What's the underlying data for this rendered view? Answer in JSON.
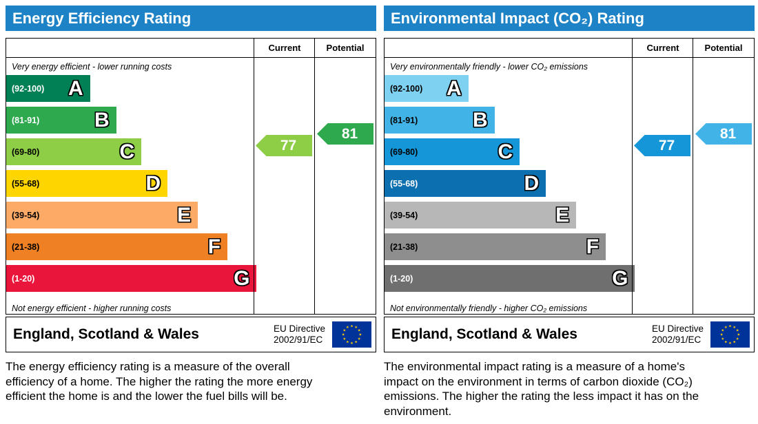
{
  "panels": [
    {
      "title": "Energy Efficiency Rating",
      "columns": {
        "current": "Current",
        "potential": "Potential"
      },
      "top_caption": "Very energy efficient - lower running costs",
      "bottom_caption": "Not energy efficient - higher running costs",
      "bands": [
        {
          "letter": "A",
          "range": "(92-100)",
          "min": 92,
          "max": 100,
          "color": "#008054",
          "label_color": "#ffffff",
          "width": "22.7%"
        },
        {
          "letter": "B",
          "range": "(81-91)",
          "min": 81,
          "max": 91,
          "color": "#2ea94e",
          "label_color": "#ffffff",
          "width": "29.8%"
        },
        {
          "letter": "C",
          "range": "(69-80)",
          "min": 69,
          "max": 80,
          "color": "#8dce46",
          "label_color": "#000000",
          "width": "36.6%"
        },
        {
          "letter": "D",
          "range": "(55-68)",
          "min": 55,
          "max": 68,
          "color": "#ffd500",
          "label_color": "#000000",
          "width": "43.7%"
        },
        {
          "letter": "E",
          "range": "(39-54)",
          "min": 39,
          "max": 54,
          "color": "#fcaa65",
          "label_color": "#000000",
          "width": "51.9%"
        },
        {
          "letter": "F",
          "range": "(21-38)",
          "min": 21,
          "max": 38,
          "color": "#ef8023",
          "label_color": "#000000",
          "width": "59.9%"
        },
        {
          "letter": "G",
          "range": "(1-20)",
          "min": 1,
          "max": 20,
          "color": "#e9153b",
          "label_color": "#ffffff",
          "width": "67.8%"
        }
      ],
      "current": {
        "value": 77,
        "color": "#8dce46"
      },
      "potential": {
        "value": 81,
        "color": "#2ea94e"
      },
      "footer": {
        "region": "England, Scotland & Wales",
        "directive_line1": "EU Directive",
        "directive_line2": "2002/91/EC"
      },
      "description": "The energy efficiency rating is a measure of the overall efficiency of a home. The higher the rating the more energy efficient the home is and the lower the fuel bills will be."
    },
    {
      "title": "Environmental Impact (CO₂) Rating",
      "columns": {
        "current": "Current",
        "potential": "Potential"
      },
      "top_caption": "Very environmentally friendly - lower CO₂ emissions",
      "bottom_caption": "Not environmentally friendly - higher CO₂ emissions",
      "bands": [
        {
          "letter": "A",
          "range": "(92-100)",
          "min": 92,
          "max": 100,
          "color": "#7fd1f1",
          "label_color": "#000000",
          "width": "22.7%"
        },
        {
          "letter": "B",
          "range": "(81-91)",
          "min": 81,
          "max": 91,
          "color": "#41b3e6",
          "label_color": "#000000",
          "width": "29.8%"
        },
        {
          "letter": "C",
          "range": "(69-80)",
          "min": 69,
          "max": 80,
          "color": "#1496d8",
          "label_color": "#000000",
          "width": "36.6%"
        },
        {
          "letter": "D",
          "range": "(55-68)",
          "min": 55,
          "max": 68,
          "color": "#0b6fb0",
          "label_color": "#ffffff",
          "width": "43.7%"
        },
        {
          "letter": "E",
          "range": "(39-54)",
          "min": 39,
          "max": 54,
          "color": "#b7b7b7",
          "label_color": "#000000",
          "width": "51.9%"
        },
        {
          "letter": "F",
          "range": "(21-38)",
          "min": 21,
          "max": 38,
          "color": "#8e8e8e",
          "label_color": "#000000",
          "width": "59.9%"
        },
        {
          "letter": "G",
          "range": "(1-20)",
          "min": 1,
          "max": 20,
          "color": "#6f6f6f",
          "label_color": "#ffffff",
          "width": "67.8%"
        }
      ],
      "current": {
        "value": 77,
        "color": "#1496d8"
      },
      "potential": {
        "value": 81,
        "color": "#41b3e6"
      },
      "footer": {
        "region": "England, Scotland & Wales",
        "directive_line1": "EU Directive",
        "directive_line2": "2002/91/EC"
      },
      "description": "The environmental impact rating is a measure of a home's impact on the environment in terms of carbon dioxide (CO₂) emissions. The higher the rating the less impact it has on the environment."
    }
  ],
  "chart_data": [
    {
      "type": "bar",
      "title": "Energy Efficiency Rating",
      "categories": [
        "A (92-100)",
        "B (81-91)",
        "C (69-80)",
        "D (55-68)",
        "E (39-54)",
        "F (21-38)",
        "G (1-20)"
      ],
      "series": [
        {
          "name": "Current",
          "values": [
            77
          ],
          "band": "C"
        },
        {
          "name": "Potential",
          "values": [
            81
          ],
          "band": "B"
        }
      ],
      "annotations": [
        "Very energy efficient - lower running costs",
        "Not energy efficient - higher running costs"
      ],
      "footer": "England, Scotland & Wales — EU Directive 2002/91/EC"
    },
    {
      "type": "bar",
      "title": "Environmental Impact (CO₂) Rating",
      "categories": [
        "A (92-100)",
        "B (81-91)",
        "C (69-80)",
        "D (55-68)",
        "E (39-54)",
        "F (21-38)",
        "G (1-20)"
      ],
      "series": [
        {
          "name": "Current",
          "values": [
            77
          ],
          "band": "C"
        },
        {
          "name": "Potential",
          "values": [
            81
          ],
          "band": "B"
        }
      ],
      "annotations": [
        "Very environmentally friendly - lower CO₂ emissions",
        "Not environmentally friendly - higher CO₂ emissions"
      ],
      "footer": "England, Scotland & Wales — EU Directive 2002/91/EC"
    }
  ]
}
